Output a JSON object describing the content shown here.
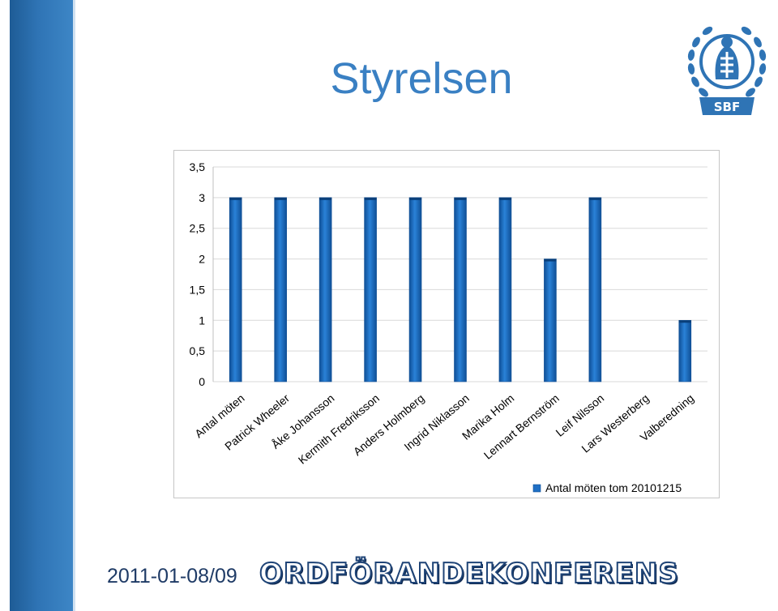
{
  "slide": {
    "title": "Styrelsen",
    "footer_date": "2011-01-08/09",
    "footer_name": "ORDFÖRANDEKONFERENS"
  },
  "logo": {
    "text": "SBF",
    "icon": "sbf-wreath-emblem"
  },
  "colors": {
    "side_bar": "#2f74b5",
    "title": "#3a80c3",
    "bar": "#1f6fc4",
    "bar_dark": "#0f4f96"
  },
  "chart_data": {
    "type": "bar",
    "categories": [
      "Antal möten",
      "Patrick Wheeler",
      "Åke Johansson",
      "Kermith Fredriksson",
      "Anders Holmberg",
      "Ingrid Niklasson",
      "Marika Holm",
      "Lennart Bernström",
      "Leif Nilsson",
      "Lars Westerberg",
      "Valberedning"
    ],
    "series": [
      {
        "name": "Antal möten tom 20101215",
        "values": [
          3,
          3,
          3,
          3,
          3,
          3,
          3,
          2,
          3,
          0,
          1
        ]
      }
    ],
    "ylim": [
      0,
      3.5
    ],
    "yticks": [
      "0",
      "0,5",
      "1",
      "1,5",
      "2",
      "2,5",
      "3",
      "3,5"
    ],
    "grid": true,
    "legend": "bottom-right"
  }
}
